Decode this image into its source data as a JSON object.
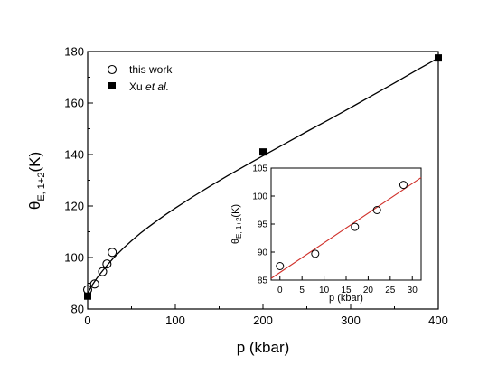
{
  "chart_data": [
    {
      "type": "scatter",
      "xlabel": "p (kbar)",
      "ylabel_main": "θ",
      "ylabel_sub": "E, 1+2",
      "ylabel_tail": "(K)",
      "xlim": [
        0,
        400
      ],
      "ylim": [
        80,
        180
      ],
      "xticks": [
        0,
        100,
        200,
        300,
        400
      ],
      "yticks": [
        80,
        100,
        120,
        140,
        160,
        180
      ],
      "legend_placement": "top-left",
      "series": [
        {
          "name": "this work",
          "marker": "open-circle",
          "points": [
            [
              0,
              87.5
            ],
            [
              8,
              89.7
            ],
            [
              17,
              94.5
            ],
            [
              22,
              97.5
            ],
            [
              28,
              102
            ]
          ]
        },
        {
          "name_plain": "Xu ",
          "name_italic": "et al.",
          "marker": "filled-square",
          "points": [
            [
              0,
              85
            ],
            [
              200,
              141
            ],
            [
              400,
              177.5
            ]
          ]
        },
        {
          "kind": "fit-curve",
          "color": "#000000",
          "points": [
            [
              0,
              86
            ],
            [
              5,
              89.2
            ],
            [
              10,
              91.7
            ],
            [
              15,
              94
            ],
            [
              20,
              96.1
            ],
            [
              25,
              98.1
            ],
            [
              30,
              100
            ],
            [
              40,
              103.4
            ],
            [
              50,
              106.5
            ],
            [
              60,
              109.4
            ],
            [
              70,
              112
            ],
            [
              80,
              114.5
            ],
            [
              90,
              116.9
            ],
            [
              100,
              119.2
            ],
            [
              120,
              123.6
            ],
            [
              140,
              127.8
            ],
            [
              160,
              131.8
            ],
            [
              180,
              135.7
            ],
            [
              200,
              139.5
            ],
            [
              225,
              144.2
            ],
            [
              250,
              148.9
            ],
            [
              275,
              153.5
            ],
            [
              300,
              158.2
            ],
            [
              325,
              163
            ],
            [
              350,
              167.8
            ],
            [
              375,
              172.7
            ],
            [
              400,
              177.5
            ]
          ]
        }
      ]
    },
    {
      "type": "scatter",
      "role": "inset",
      "xlabel": "p (kbar)",
      "ylabel_main": "θ",
      "ylabel_sub": "E, 1+2",
      "ylabel_tail": "(K)",
      "xlim": [
        -2,
        32
      ],
      "ylim": [
        85,
        105
      ],
      "xticks": [
        0,
        5,
        10,
        15,
        20,
        25,
        30
      ],
      "yticks": [
        85,
        90,
        95,
        100,
        105
      ],
      "series": [
        {
          "marker": "open-circle",
          "points": [
            [
              0,
              87.5
            ],
            [
              8,
              89.7
            ],
            [
              17,
              94.5
            ],
            [
              22,
              97.5
            ],
            [
              28,
              102
            ]
          ]
        },
        {
          "kind": "linear-fit",
          "color": "#d0302a",
          "points": [
            [
              -2,
              85.3
            ],
            [
              32,
              103.3
            ]
          ]
        }
      ]
    }
  ]
}
